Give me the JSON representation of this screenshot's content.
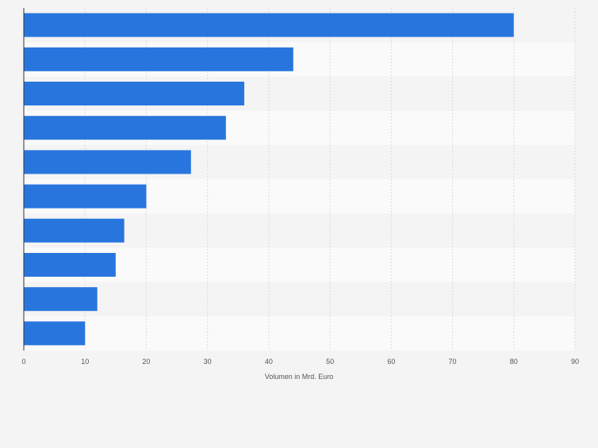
{
  "chart_data": {
    "type": "bar",
    "orientation": "horizontal",
    "values": [
      80,
      44,
      36,
      33,
      27.3,
      20,
      16.4,
      15,
      12,
      10
    ],
    "xlabel": "Volumen in Mrd. Euro",
    "ylabel": "",
    "xlim": [
      0,
      90
    ],
    "xticks": [
      "0",
      "10",
      "20",
      "30",
      "40",
      "50",
      "60",
      "70",
      "80",
      "90"
    ],
    "grid": "vertical gridlines, alternating row bands",
    "bar_color": "#2876dd",
    "band_colors": [
      "#f4f4f4",
      "#fafafa"
    ]
  }
}
